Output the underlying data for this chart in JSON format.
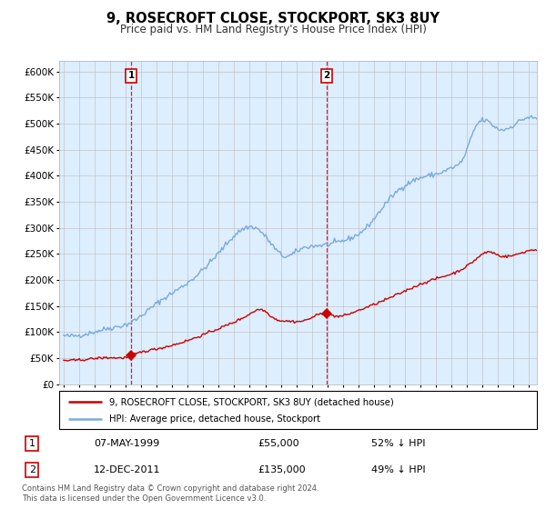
{
  "title": "9, ROSECROFT CLOSE, STOCKPORT, SK3 8UY",
  "subtitle": "Price paid vs. HM Land Registry's House Price Index (HPI)",
  "title_fontsize": 10.5,
  "subtitle_fontsize": 8.5,
  "hpi_color": "#7aaadd",
  "price_color": "#cc0000",
  "chart_bg_color": "#ddeeff",
  "outer_bg_color": "#ffffff",
  "grid_color": "#bbbbbb",
  "ylim": [
    0,
    620000
  ],
  "yticks": [
    0,
    50000,
    100000,
    150000,
    200000,
    250000,
    300000,
    350000,
    400000,
    450000,
    500000,
    550000,
    600000
  ],
  "sale1_date": 1999.35,
  "sale1_price": 55000,
  "sale1_label": "1",
  "sale2_date": 2011.95,
  "sale2_price": 135000,
  "sale2_label": "2",
  "legend_line1": "9, ROSECROFT CLOSE, STOCKPORT, SK3 8UY (detached house)",
  "legend_line2": "HPI: Average price, detached house, Stockport",
  "table_row1": [
    "1",
    "07-MAY-1999",
    "£55,000",
    "52% ↓ HPI"
  ],
  "table_row2": [
    "2",
    "12-DEC-2011",
    "£135,000",
    "49% ↓ HPI"
  ],
  "footnote": "Contains HM Land Registry data © Crown copyright and database right 2024.\nThis data is licensed under the Open Government Licence v3.0.",
  "xmin": 1994.7,
  "xmax": 2025.5
}
